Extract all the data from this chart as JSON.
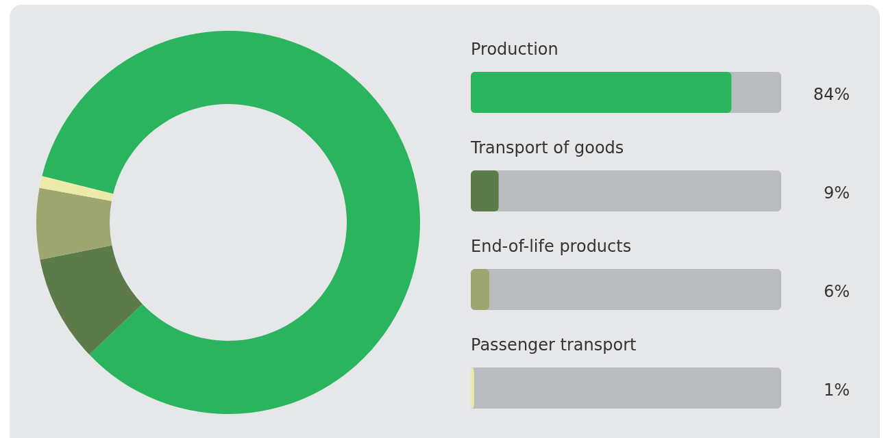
{
  "chart_data": [
    {
      "type": "donut",
      "categories": [
        null,
        null,
        null,
        null
      ],
      "values": [
        84,
        9,
        6,
        1
      ],
      "colors": [
        "#2bb45e",
        "#5c7a4a",
        "#9ca66e",
        "#ede9a8"
      ]
    },
    {
      "type": "bar",
      "orientation": "horizontal",
      "categories": [
        "Production",
        "Transport of goods",
        "End-of-life products",
        "Passenger transport"
      ],
      "values": [
        84,
        9,
        6,
        1
      ],
      "colors": [
        "#2bb45e",
        "#5c7a4a",
        "#9ca66e",
        "#ede9a8"
      ],
      "value_labels": [
        "84%",
        "9%",
        "6%",
        "1%"
      ],
      "xlim": [
        0,
        100
      ],
      "tick_labels": false
    }
  ]
}
